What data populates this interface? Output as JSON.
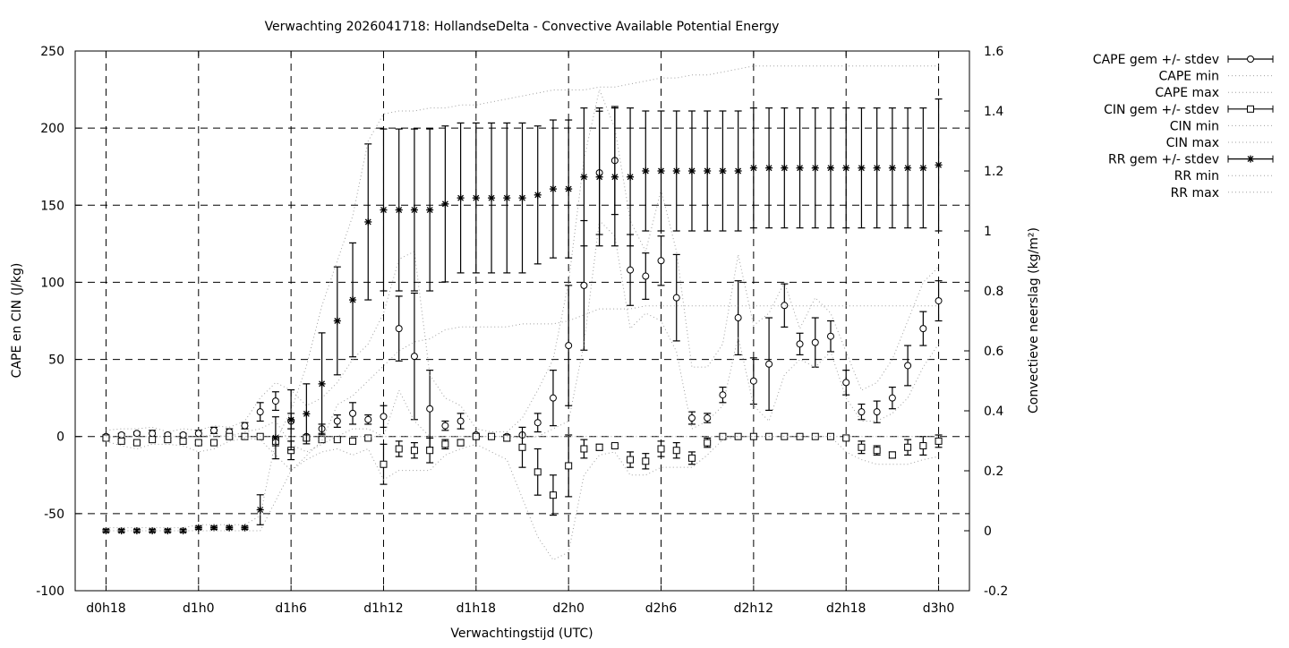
{
  "chart_data": {
    "type": "line",
    "title": "Verwachting 2026041718: HollandseDelta - Convective Available Potential Energy",
    "xlabel": "Verwachtingstijd (UTC)",
    "ylabel": "CAPE en CIN (J/kg)",
    "y2label": "Convectieve neerslag (kg/m²)",
    "xlim_hours": [
      16,
      74
    ],
    "ylim": [
      -100,
      250
    ],
    "y2lim": [
      -0.2,
      1.6
    ],
    "grid": true,
    "legend_position": "top-right, outside",
    "x_ticks": [
      {
        "hour": 18,
        "label": "d0h18"
      },
      {
        "hour": 24,
        "label": "d1h0"
      },
      {
        "hour": 30,
        "label": "d1h6"
      },
      {
        "hour": 36,
        "label": "d1h12"
      },
      {
        "hour": 42,
        "label": "d1h18"
      },
      {
        "hour": 48,
        "label": "d2h0"
      },
      {
        "hour": 54,
        "label": "d2h6"
      },
      {
        "hour": 60,
        "label": "d2h12"
      },
      {
        "hour": 66,
        "label": "d2h18"
      },
      {
        "hour": 72,
        "label": "d3h0"
      }
    ],
    "y_ticks": [
      "-100",
      "-50",
      "0",
      "50",
      "100",
      "150",
      "200",
      "250"
    ],
    "y2_ticks": [
      "-0.2",
      "0",
      "0.2",
      "0.4",
      "0.6",
      "0.8",
      "1",
      "1.2",
      "1.4",
      "1.6"
    ],
    "x_hours_start": 18,
    "series": [
      {
        "name": "CAPE gem +/- stdev",
        "axis": "left",
        "style": "errorbar-circle",
        "values": [
          0,
          1,
          2,
          2,
          1,
          1,
          2,
          4,
          3,
          7,
          16,
          23,
          10,
          0,
          5,
          10,
          15,
          11,
          13,
          70,
          52,
          18,
          7,
          10,
          1,
          0,
          0,
          1,
          9,
          25,
          59,
          98,
          171,
          179,
          108,
          104,
          114,
          90,
          12,
          12,
          27,
          77,
          36,
          47,
          85,
          60,
          61,
          65,
          35,
          16,
          16,
          25,
          46,
          70,
          88
        ],
        "stdev": [
          1,
          1,
          1,
          2,
          1,
          1,
          2,
          2,
          2,
          2,
          6,
          6,
          5,
          0,
          3,
          4,
          7,
          3,
          7,
          21,
          41,
          25,
          3,
          5,
          1,
          0,
          1,
          0,
          6,
          18,
          39,
          42,
          40,
          35,
          23,
          15,
          16,
          28,
          4,
          3,
          5,
          24,
          15,
          30,
          14,
          7,
          16,
          10,
          8,
          5,
          7,
          7,
          13,
          11,
          13
        ]
      },
      {
        "name": "CAPE min",
        "axis": "left",
        "style": "dotted",
        "values": [
          -1,
          0,
          0,
          0,
          0,
          0,
          0,
          1,
          0,
          3,
          5,
          10,
          -5,
          -10,
          -5,
          0,
          5,
          5,
          0,
          30,
          10,
          0,
          0,
          0,
          0,
          0,
          0,
          -1,
          0,
          5,
          10,
          60,
          140,
          130,
          70,
          80,
          75,
          55,
          5,
          10,
          20,
          65,
          20,
          10,
          40,
          50,
          45,
          55,
          25,
          10,
          10,
          15,
          25,
          45,
          60
        ]
      },
      {
        "name": "CAPE max",
        "axis": "left",
        "style": "dotted",
        "values": [
          4,
          5,
          5,
          6,
          3,
          5,
          4,
          7,
          6,
          10,
          25,
          35,
          30,
          20,
          25,
          35,
          50,
          60,
          80,
          115,
          120,
          40,
          25,
          20,
          5,
          3,
          3,
          12,
          30,
          50,
          100,
          180,
          225,
          200,
          140,
          120,
          160,
          120,
          45,
          45,
          60,
          118,
          72,
          80,
          100,
          70,
          90,
          80,
          55,
          30,
          35,
          50,
          75,
          100,
          110
        ]
      },
      {
        "name": "CIN gem +/- stdev",
        "axis": "left",
        "style": "errorbar-square",
        "values": [
          -1,
          -3,
          -4,
          -2,
          -2,
          -3,
          -4,
          -4,
          0,
          0,
          0,
          -3,
          -9,
          -1,
          -2,
          -2,
          -3,
          -1,
          -18,
          -8,
          -9,
          -9,
          -5,
          -4,
          0,
          0,
          -1,
          -7,
          -23,
          -38,
          -19,
          -8,
          -7,
          -6,
          -15,
          -16,
          -8,
          -9,
          -14,
          -4,
          0,
          0,
          0,
          0,
          0,
          0,
          0,
          0,
          -1,
          -7,
          -9,
          -12,
          -7,
          -6,
          -3
        ],
        "stdev": [
          1,
          1,
          1,
          1,
          1,
          1,
          1,
          1,
          1,
          0,
          0,
          3,
          6,
          1,
          1,
          1,
          1,
          1,
          13,
          5,
          5,
          8,
          3,
          2,
          1,
          1,
          2,
          13,
          15,
          13,
          20,
          6,
          2,
          1,
          5,
          5,
          5,
          5,
          4,
          3,
          0,
          0,
          0,
          0,
          0,
          0,
          0,
          0,
          1,
          4,
          3,
          2,
          5,
          6,
          4
        ]
      },
      {
        "name": "CIN min",
        "axis": "left",
        "style": "dotted",
        "values": [
          -3,
          -6,
          -8,
          -5,
          -5,
          -6,
          -10,
          -8,
          -3,
          -1,
          -2,
          -12,
          -22,
          -15,
          -10,
          -8,
          -12,
          -8,
          -28,
          -22,
          -22,
          -22,
          -12,
          -8,
          -5,
          -10,
          -15,
          -40,
          -65,
          -80,
          -75,
          -25,
          -12,
          -10,
          -25,
          -25,
          -20,
          -20,
          -20,
          -12,
          -2,
          0,
          0,
          0,
          0,
          0,
          0,
          0,
          -10,
          -15,
          -18,
          -18,
          -18,
          -15,
          -13
        ]
      },
      {
        "name": "CIN max",
        "axis": "left",
        "style": "dotted",
        "values": [
          0,
          0,
          0,
          0,
          0,
          0,
          0,
          0,
          0,
          0,
          0,
          0,
          0,
          0,
          0,
          0,
          0,
          0,
          0,
          0,
          0,
          0,
          0,
          0,
          0,
          0,
          0,
          0,
          0,
          0,
          0,
          0,
          0,
          0,
          0,
          0,
          0,
          0,
          0,
          0,
          0,
          0,
          0,
          0,
          0,
          0,
          0,
          0,
          0,
          0,
          0,
          0,
          0,
          0,
          0
        ]
      },
      {
        "name": "RR gem +/- stdev",
        "axis": "right",
        "style": "errorbar-star",
        "values": [
          0,
          0,
          0,
          0,
          0,
          0,
          0.01,
          0.01,
          0.01,
          0.01,
          0.07,
          0.31,
          0.37,
          0.39,
          0.49,
          0.7,
          0.77,
          1.03,
          1.07,
          1.07,
          1.07,
          1.07,
          1.09,
          1.11,
          1.11,
          1.11,
          1.11,
          1.11,
          1.12,
          1.14,
          1.14,
          1.18,
          1.18,
          1.18,
          1.18,
          1.2,
          1.2,
          1.2,
          1.2,
          1.2,
          1.2,
          1.2,
          1.21,
          1.21,
          1.21,
          1.21,
          1.21,
          1.21,
          1.21,
          1.21,
          1.21,
          1.21,
          1.21,
          1.21,
          1.22
        ],
        "stdev": [
          0.005,
          0.005,
          0.005,
          0.005,
          0.005,
          0.005,
          0.005,
          0.005,
          0.005,
          0.005,
          0.05,
          0.07,
          0.1,
          0.1,
          0.17,
          0.18,
          0.19,
          0.26,
          0.27,
          0.27,
          0.27,
          0.27,
          0.26,
          0.25,
          0.25,
          0.25,
          0.25,
          0.25,
          0.23,
          0.23,
          0.23,
          0.23,
          0.23,
          0.23,
          0.23,
          0.2,
          0.2,
          0.2,
          0.2,
          0.2,
          0.2,
          0.2,
          0.2,
          0.2,
          0.2,
          0.2,
          0.2,
          0.2,
          0.2,
          0.2,
          0.2,
          0.2,
          0.2,
          0.2,
          0.22
        ]
      },
      {
        "name": "RR min",
        "axis": "right",
        "style": "dotted",
        "values": [
          0,
          0,
          0,
          0,
          0,
          0,
          0,
          0,
          0,
          0,
          0,
          0.1,
          0.2,
          0.25,
          0.3,
          0.42,
          0.45,
          0.5,
          0.55,
          0.6,
          0.63,
          0.64,
          0.67,
          0.68,
          0.68,
          0.68,
          0.68,
          0.69,
          0.69,
          0.69,
          0.7,
          0.72,
          0.74,
          0.74,
          0.74,
          0.75,
          0.75,
          0.75,
          0.75,
          0.75,
          0.75,
          0.75,
          0.75,
          0.75,
          0.75,
          0.75,
          0.75,
          0.75,
          0.75,
          0.75,
          0.75,
          0.75,
          0.75,
          0.75,
          0.75
        ]
      },
      {
        "name": "RR max",
        "axis": "right",
        "style": "dotted",
        "values": [
          0.01,
          0.01,
          0.01,
          0.01,
          0.01,
          0.01,
          0.02,
          0.02,
          0.02,
          0.02,
          0.05,
          0.3,
          0.4,
          0.55,
          0.75,
          0.9,
          1.05,
          1.3,
          1.39,
          1.4,
          1.4,
          1.41,
          1.41,
          1.42,
          1.42,
          1.43,
          1.44,
          1.45,
          1.46,
          1.47,
          1.47,
          1.47,
          1.48,
          1.48,
          1.49,
          1.5,
          1.51,
          1.51,
          1.52,
          1.52,
          1.53,
          1.54,
          1.55,
          1.55,
          1.55,
          1.55,
          1.55,
          1.55,
          1.55,
          1.55,
          1.55,
          1.55,
          1.55,
          1.55,
          1.55
        ]
      }
    ]
  }
}
